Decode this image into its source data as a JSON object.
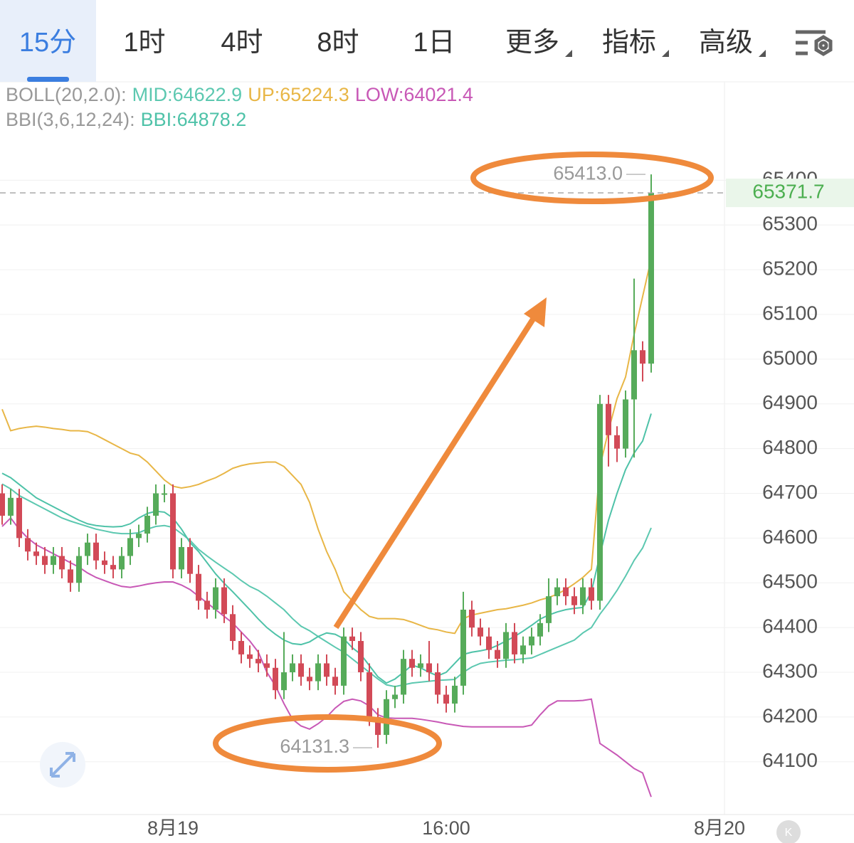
{
  "toolbar": {
    "tabs": [
      "15分",
      "1时",
      "4时",
      "8时",
      "1日",
      "更多",
      "指标",
      "高级"
    ],
    "active_tab": 0,
    "dropdown_tabs": [
      5,
      6,
      7
    ]
  },
  "chart_data": {
    "type": "candlestick",
    "legend": [
      "BOLL(20,2.0):",
      "BBI(3,6,12,24):"
    ],
    "categories": [
      null,
      null,
      null,
      null,
      null,
      null,
      null,
      null,
      null,
      null,
      null,
      null,
      null,
      null,
      null,
      null,
      null,
      null,
      null,
      null,
      "8月19",
      null,
      null,
      null,
      null,
      null,
      null,
      null,
      null,
      null,
      null,
      null,
      null,
      null,
      null,
      null,
      null,
      null,
      null,
      null,
      null,
      null,
      null,
      null,
      null,
      null,
      null,
      null,
      null,
      null,
      null,
      null,
      "16:00",
      null,
      null,
      null,
      null,
      null,
      null,
      null,
      null,
      null,
      null,
      null,
      null,
      null,
      null,
      null,
      null,
      null,
      null,
      null,
      null,
      null,
      null,
      null,
      null,
      null,
      null,
      null,
      null,
      null,
      null,
      null,
      "8月20"
    ],
    "open": [
      64700,
      64650,
      64690,
      64600,
      64570,
      64560,
      64540,
      64560,
      64530,
      64500,
      64560,
      64590,
      64550,
      64540,
      64530,
      64560,
      64600,
      64610,
      64650,
      64700,
      64700,
      64530,
      64580,
      64520,
      64460,
      64440,
      64490,
      64430,
      64370,
      64340,
      64330,
      64320,
      64310,
      64260,
      64300,
      64320,
      64290,
      64280,
      64320,
      64290,
      64270,
      64380,
      64370,
      64300,
      64200,
      64160,
      64240,
      64250,
      64330,
      64310,
      64320,
      64300,
      64250,
      64230,
      64270,
      64440,
      64400,
      64380,
      64350,
      64330,
      64390,
      64340,
      64360,
      64380,
      64410,
      64470,
      64490,
      64470,
      64450,
      64490,
      64460,
      64900,
      64830,
      64800,
      64910,
      65020,
      64990,
      null,
      null,
      null,
      null,
      null,
      null,
      null,
      null
    ],
    "high": [
      64720,
      64710,
      64710,
      64620,
      64590,
      64580,
      64580,
      64580,
      64550,
      64580,
      64610,
      64610,
      64570,
      64560,
      64580,
      64620,
      64630,
      64670,
      64720,
      64720,
      64720,
      64600,
      64600,
      64540,
      64480,
      64510,
      64510,
      64450,
      64390,
      64360,
      64350,
      64340,
      64330,
      64390,
      64340,
      64340,
      64310,
      64340,
      64340,
      64310,
      64400,
      64400,
      64390,
      64320,
      64220,
      64260,
      64270,
      64350,
      64350,
      64340,
      64370,
      64320,
      64270,
      64290,
      64480,
      64460,
      64420,
      64400,
      64370,
      64410,
      64410,
      64380,
      64400,
      64430,
      64510,
      64510,
      64510,
      64490,
      64510,
      64510,
      64920,
      64920,
      64850,
      64930,
      65180,
      65040,
      65413,
      null,
      null,
      null,
      null,
      null,
      null,
      null,
      null
    ],
    "low": [
      64630,
      64630,
      64580,
      64550,
      64540,
      64520,
      64520,
      64510,
      64480,
      64480,
      64540,
      64530,
      64520,
      64510,
      64510,
      64540,
      64580,
      64590,
      64630,
      64680,
      64510,
      64510,
      64500,
      64440,
      64420,
      64420,
      64410,
      64350,
      64320,
      64310,
      64300,
      64290,
      64240,
      64240,
      64280,
      64270,
      64260,
      64260,
      64270,
      64250,
      64250,
      64350,
      64280,
      64180,
      64131.3,
      64140,
      64220,
      64230,
      64290,
      64290,
      64280,
      64230,
      64210,
      64210,
      64250,
      64380,
      64360,
      64330,
      64310,
      64310,
      64320,
      64320,
      64340,
      64360,
      64390,
      64450,
      64450,
      64430,
      64430,
      64440,
      64440,
      64760,
      64770,
      64780,
      64780,
      64950,
      64970,
      null,
      null,
      null,
      null,
      null,
      null,
      null,
      null
    ],
    "close": [
      64650,
      64690,
      64600,
      64570,
      64560,
      64540,
      64560,
      64530,
      64500,
      64560,
      64590,
      64550,
      64540,
      64530,
      64560,
      64600,
      64610,
      64650,
      64700,
      64700,
      64530,
      64580,
      64520,
      64460,
      64440,
      64490,
      64430,
      64370,
      64340,
      64330,
      64320,
      64310,
      64260,
      64300,
      64320,
      64290,
      64280,
      64320,
      64290,
      64270,
      64380,
      64370,
      64300,
      64200,
      64160,
      64240,
      64250,
      64330,
      64310,
      64320,
      64300,
      64250,
      64230,
      64270,
      64440,
      64400,
      64380,
      64350,
      64330,
      64390,
      64340,
      64360,
      64380,
      64410,
      64470,
      64490,
      64470,
      64450,
      64490,
      64460,
      64900,
      64830,
      64800,
      64910,
      65020,
      64990,
      65371.7,
      null,
      null,
      null,
      null,
      null,
      null,
      null,
      null
    ],
    "up_color": "#56ab5a",
    "down_color": "#d24a57",
    "series": [
      {
        "name": "MID:",
        "color": "#5cc8b0",
        "values": [
          64721,
          64710,
          64695,
          64685,
          64675,
          64665,
          64655,
          64645,
          64638,
          64632,
          64626,
          64620,
          64616,
          64612,
          64610,
          64610,
          64612,
          64620,
          64626,
          64628,
          64624,
          64610,
          64595,
          64575,
          64560,
          64546,
          64533,
          64520,
          64505,
          64492,
          64483,
          64470,
          64455,
          64440,
          64420,
          64403,
          64393,
          64380,
          64368,
          64356,
          64345,
          64330,
          64315,
          64300,
          64285,
          64272,
          64268,
          64272,
          64276,
          64278,
          64280,
          64282,
          64283,
          64284,
          64300,
          64312,
          64320,
          64323,
          64325,
          64327,
          64328,
          64330,
          64332,
          64340,
          64348,
          64356,
          64364,
          64372,
          64388,
          64400,
          64430,
          64455,
          64483,
          64515,
          64550,
          64578,
          64622.9,
          null,
          null,
          null,
          null,
          null,
          null,
          null,
          null
        ]
      },
      {
        "name": "UP:",
        "color": "#e8b646",
        "values": [
          64888,
          64840,
          64845,
          64848,
          64850,
          64848,
          64845,
          64843,
          64840,
          64840,
          64838,
          64830,
          64820,
          64810,
          64800,
          64790,
          64785,
          64770,
          64750,
          64730,
          64716,
          64712,
          64715,
          64720,
          64728,
          64735,
          64745,
          64756,
          64762,
          64766,
          64768,
          64770,
          64770,
          64760,
          64740,
          64720,
          64680,
          64620,
          64570,
          64530,
          64480,
          64460,
          64440,
          64425,
          64420,
          64420,
          64420,
          64418,
          64412,
          64405,
          64398,
          64395,
          64390,
          64387,
          64420,
          64428,
          64432,
          64436,
          64440,
          64442,
          64446,
          64450,
          64455,
          64462,
          64467,
          64475,
          64485,
          64498,
          64512,
          64530,
          64760,
          64840,
          64912,
          64960,
          65055,
          65140,
          65224.3,
          null,
          null,
          null,
          null,
          null,
          null,
          null,
          null
        ]
      },
      {
        "name": "LOW:",
        "color": "#c858b6",
        "values": [
          64626,
          64645,
          64620,
          64600,
          64585,
          64575,
          64565,
          64555,
          64545,
          64535,
          64522,
          64512,
          64505,
          64498,
          64492,
          64490,
          64493,
          64497,
          64500,
          64502,
          64502,
          64495,
          64485,
          64470,
          64455,
          64440,
          64425,
          64410,
          64390,
          64370,
          64345,
          64300,
          64270,
          64230,
          64195,
          64180,
          64173,
          64185,
          64200,
          64220,
          64235,
          64240,
          64236,
          64225,
          64205,
          64198,
          64197,
          64197,
          64197,
          64195,
          64192,
          64189,
          64185,
          64182,
          64179,
          64178,
          64178,
          64178,
          64178,
          64178,
          64178,
          64178,
          64182,
          64205,
          64225,
          64236,
          64236,
          64236,
          64237,
          64240,
          64141,
          64128,
          64115,
          64100,
          64085,
          64075,
          64021.4,
          null,
          null,
          null,
          null,
          null,
          null,
          null,
          null
        ]
      },
      {
        "name": "BBI:",
        "color": "#4ec2a8",
        "values": [
          64745,
          64735,
          64720,
          64705,
          64690,
          64680,
          64670,
          64660,
          64650,
          64640,
          64632,
          64628,
          64626,
          64625,
          64626,
          64632,
          64645,
          64655,
          64660,
          64658,
          64645,
          64620,
          64590,
          64570,
          64545,
          64520,
          64499,
          64480,
          64460,
          64440,
          64419,
          64400,
          64385,
          64372,
          64364,
          64362,
          64368,
          64380,
          64388,
          64385,
          64375,
          64355,
          64340,
          64315,
          64290,
          64276,
          64285,
          64300,
          64316,
          64310,
          64300,
          64292,
          64300,
          64320,
          64340,
          64345,
          64348,
          64352,
          64360,
          64370,
          64380,
          64392,
          64405,
          64419,
          64428,
          64435,
          64440,
          64443,
          64445,
          64480,
          64562,
          64640,
          64700,
          64753,
          64790,
          64817,
          64878.2,
          null,
          null,
          null,
          null,
          null,
          null,
          null,
          null
        ]
      }
    ],
    "annotations": [
      "65413.0",
      "64131.3"
    ],
    "ylim": [
      63982,
      65620
    ],
    "yticks": [
      64100,
      64200,
      64300,
      64400,
      64500,
      64600,
      64700,
      64800,
      64900,
      65000,
      65100,
      65200,
      65300,
      65400
    ],
    "grid": true,
    "logo": "K"
  }
}
